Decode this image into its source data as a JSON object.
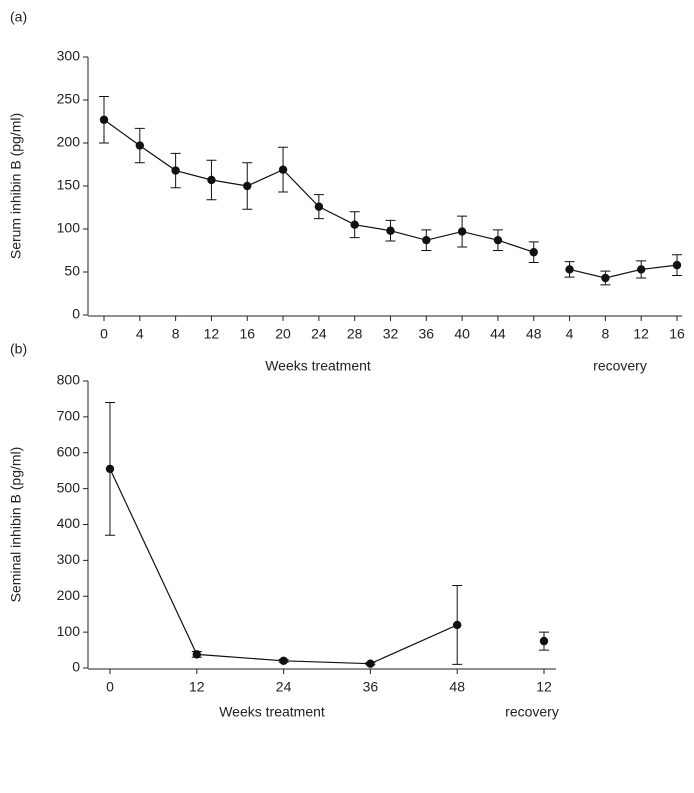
{
  "chart_data": [
    {
      "type": "line",
      "panel": "(a)",
      "ylabel": "Serum inhibin B (pg/ml)",
      "xlabel": "Weeks treatment",
      "xlabel2": "recovery",
      "categories": [
        "0",
        "4",
        "8",
        "12",
        "16",
        "20",
        "24",
        "28",
        "32",
        "36",
        "40",
        "44",
        "48",
        "4",
        "8",
        "12",
        "16"
      ],
      "series": [
        {
          "color": "#111",
          "values": [
            227,
            197,
            168,
            157,
            150,
            169,
            126,
            105,
            98,
            87,
            97,
            87,
            73,
            null,
            null,
            null,
            null
          ],
          "errors": [
            27,
            20,
            20,
            23,
            27,
            26,
            14,
            15,
            12,
            12,
            18,
            12,
            12,
            null,
            null,
            null,
            null
          ]
        },
        {
          "color": "#111",
          "values": [
            null,
            null,
            null,
            null,
            null,
            null,
            null,
            null,
            null,
            null,
            null,
            null,
            null,
            53,
            43,
            53,
            58
          ],
          "errors": [
            null,
            null,
            null,
            null,
            null,
            null,
            null,
            null,
            null,
            null,
            null,
            null,
            null,
            9,
            8,
            10,
            12
          ]
        }
      ],
      "ylim": [
        0,
        300
      ],
      "yticks": [
        0,
        50,
        100,
        150,
        200,
        250,
        300
      ]
    },
    {
      "type": "line",
      "panel": "(b)",
      "ylabel": "Seminal inhibin B (pg/ml)",
      "xlabel": "Weeks treatment",
      "xlabel2": "recovery",
      "categories": [
        "0",
        "12",
        "24",
        "36",
        "48",
        "12"
      ],
      "series": [
        {
          "color": "#111",
          "values": [
            555,
            38,
            20,
            12,
            120,
            null
          ],
          "errors": [
            185,
            8,
            4,
            3,
            110,
            null
          ]
        },
        {
          "color": "#111",
          "values": [
            null,
            null,
            null,
            null,
            null,
            75
          ],
          "errors": [
            null,
            null,
            null,
            null,
            null,
            25
          ]
        }
      ],
      "ylim": [
        0,
        800
      ],
      "yticks": [
        0,
        100,
        200,
        300,
        400,
        500,
        600,
        700,
        800
      ]
    }
  ]
}
